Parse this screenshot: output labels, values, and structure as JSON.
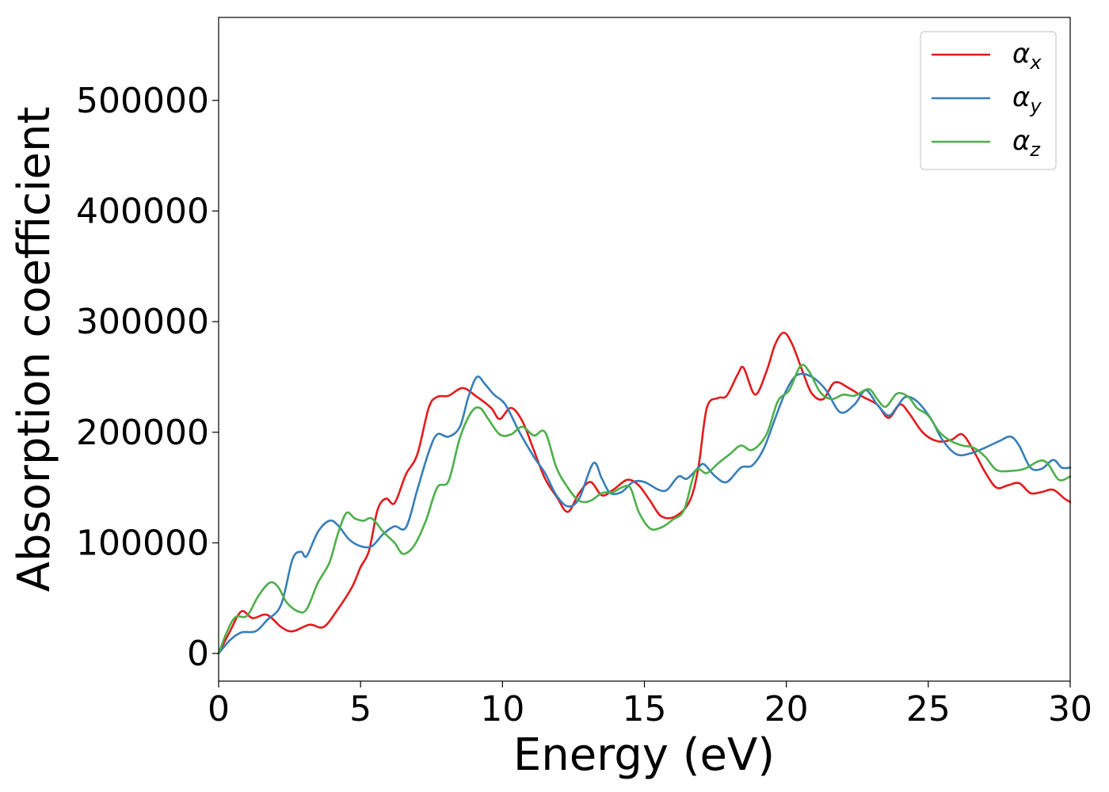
{
  "chart_data": {
    "type": "line",
    "xlabel": "Energy (eV)",
    "ylabel": "Absorption coefficient",
    "xlim": [
      0,
      30
    ],
    "ylim": [
      -25000,
      575000
    ],
    "x_ticks": [
      0,
      5,
      10,
      15,
      20,
      25,
      30
    ],
    "y_ticks": [
      0,
      100000,
      200000,
      300000,
      400000,
      500000
    ],
    "grid": false,
    "legend_position": "top-right",
    "series": [
      {
        "name": "α",
        "sub": "x",
        "color": "#e41a1c",
        "points": [
          [
            0,
            0
          ],
          [
            0.4,
            20000
          ],
          [
            0.8,
            38000
          ],
          [
            1.2,
            32000
          ],
          [
            1.7,
            35000
          ],
          [
            2.2,
            24000
          ],
          [
            2.6,
            20000
          ],
          [
            3.2,
            26000
          ],
          [
            3.7,
            24000
          ],
          [
            4.2,
            40000
          ],
          [
            4.7,
            60000
          ],
          [
            5.0,
            78000
          ],
          [
            5.3,
            93000
          ],
          [
            5.6,
            130000
          ],
          [
            5.9,
            140000
          ],
          [
            6.2,
            136000
          ],
          [
            6.6,
            162000
          ],
          [
            7.0,
            180000
          ],
          [
            7.4,
            222000
          ],
          [
            7.7,
            232000
          ],
          [
            8.1,
            233000
          ],
          [
            8.6,
            240000
          ],
          [
            9.1,
            232000
          ],
          [
            9.6,
            222000
          ],
          [
            9.9,
            212000
          ],
          [
            10.3,
            222000
          ],
          [
            10.7,
            210000
          ],
          [
            11.1,
            184000
          ],
          [
            11.5,
            158000
          ],
          [
            11.9,
            142000
          ],
          [
            12.3,
            128000
          ],
          [
            12.7,
            145000
          ],
          [
            13.1,
            155000
          ],
          [
            13.5,
            143000
          ],
          [
            13.9,
            148000
          ],
          [
            14.4,
            157000
          ],
          [
            14.8,
            152000
          ],
          [
            15.2,
            138000
          ],
          [
            15.6,
            124000
          ],
          [
            16.1,
            124000
          ],
          [
            16.6,
            138000
          ],
          [
            16.9,
            168000
          ],
          [
            17.2,
            222000
          ],
          [
            17.6,
            231000
          ],
          [
            17.9,
            233000
          ],
          [
            18.3,
            253000
          ],
          [
            18.5,
            258000
          ],
          [
            18.9,
            234000
          ],
          [
            19.3,
            255000
          ],
          [
            19.6,
            279000
          ],
          [
            19.9,
            290000
          ],
          [
            20.2,
            280000
          ],
          [
            20.6,
            253000
          ],
          [
            20.9,
            235000
          ],
          [
            21.3,
            230000
          ],
          [
            21.7,
            245000
          ],
          [
            22.2,
            240000
          ],
          [
            22.7,
            232000
          ],
          [
            23.2,
            225000
          ],
          [
            23.6,
            213000
          ],
          [
            24.0,
            225000
          ],
          [
            24.3,
            218000
          ],
          [
            24.8,
            200000
          ],
          [
            25.3,
            192000
          ],
          [
            25.8,
            193000
          ],
          [
            26.2,
            198000
          ],
          [
            26.6,
            183000
          ],
          [
            27.0,
            164000
          ],
          [
            27.4,
            150000
          ],
          [
            27.8,
            152000
          ],
          [
            28.2,
            154000
          ],
          [
            28.6,
            145000
          ],
          [
            29.0,
            146000
          ],
          [
            29.4,
            148000
          ],
          [
            29.8,
            140000
          ],
          [
            30.0,
            137000
          ]
        ]
      },
      {
        "name": "α",
        "sub": "y",
        "color": "#377eb8",
        "points": [
          [
            0,
            0
          ],
          [
            0.4,
            12000
          ],
          [
            0.8,
            19000
          ],
          [
            1.3,
            20000
          ],
          [
            1.7,
            30000
          ],
          [
            2.2,
            44000
          ],
          [
            2.6,
            85000
          ],
          [
            2.9,
            92000
          ],
          [
            3.1,
            88000
          ],
          [
            3.5,
            110000
          ],
          [
            3.9,
            120000
          ],
          [
            4.2,
            116000
          ],
          [
            4.6,
            103000
          ],
          [
            5.0,
            97000
          ],
          [
            5.4,
            97000
          ],
          [
            5.8,
            108000
          ],
          [
            6.2,
            115000
          ],
          [
            6.6,
            114000
          ],
          [
            7.0,
            148000
          ],
          [
            7.4,
            182000
          ],
          [
            7.7,
            198000
          ],
          [
            8.1,
            196000
          ],
          [
            8.5,
            205000
          ],
          [
            8.8,
            232000
          ],
          [
            9.1,
            250000
          ],
          [
            9.4,
            243000
          ],
          [
            9.7,
            234000
          ],
          [
            10.1,
            225000
          ],
          [
            10.6,
            200000
          ],
          [
            11.1,
            178000
          ],
          [
            11.5,
            163000
          ],
          [
            11.9,
            143000
          ],
          [
            12.3,
            133000
          ],
          [
            12.7,
            140000
          ],
          [
            13.2,
            172000
          ],
          [
            13.5,
            158000
          ],
          [
            13.8,
            145000
          ],
          [
            14.2,
            146000
          ],
          [
            14.6,
            155000
          ],
          [
            15.0,
            155000
          ],
          [
            15.5,
            148000
          ],
          [
            15.8,
            148000
          ],
          [
            16.2,
            160000
          ],
          [
            16.5,
            158000
          ],
          [
            16.9,
            168000
          ],
          [
            17.1,
            171000
          ],
          [
            17.5,
            160000
          ],
          [
            17.9,
            155000
          ],
          [
            18.4,
            168000
          ],
          [
            18.8,
            170000
          ],
          [
            19.2,
            185000
          ],
          [
            19.6,
            212000
          ],
          [
            20.0,
            238000
          ],
          [
            20.4,
            252000
          ],
          [
            20.9,
            250000
          ],
          [
            21.4,
            238000
          ],
          [
            21.9,
            218000
          ],
          [
            22.4,
            225000
          ],
          [
            22.8,
            238000
          ],
          [
            23.2,
            225000
          ],
          [
            23.6,
            215000
          ],
          [
            23.9,
            223000
          ],
          [
            24.2,
            232000
          ],
          [
            24.6,
            228000
          ],
          [
            25.1,
            212000
          ],
          [
            25.5,
            193000
          ],
          [
            26.0,
            180000
          ],
          [
            26.5,
            181000
          ],
          [
            27.0,
            186000
          ],
          [
            27.5,
            192000
          ],
          [
            27.9,
            196000
          ],
          [
            28.2,
            188000
          ],
          [
            28.6,
            168000
          ],
          [
            29.0,
            167000
          ],
          [
            29.4,
            175000
          ],
          [
            29.7,
            168000
          ],
          [
            30.0,
            168000
          ]
        ]
      },
      {
        "name": "α",
        "sub": "z",
        "color": "#4daf4a",
        "points": [
          [
            0,
            0
          ],
          [
            0.3,
            20000
          ],
          [
            0.6,
            33000
          ],
          [
            1.0,
            34000
          ],
          [
            1.4,
            52000
          ],
          [
            1.8,
            64000
          ],
          [
            2.1,
            60000
          ],
          [
            2.4,
            46000
          ],
          [
            2.8,
            38000
          ],
          [
            3.1,
            40000
          ],
          [
            3.5,
            64000
          ],
          [
            3.9,
            82000
          ],
          [
            4.2,
            108000
          ],
          [
            4.5,
            127000
          ],
          [
            4.8,
            122000
          ],
          [
            5.1,
            120000
          ],
          [
            5.4,
            122000
          ],
          [
            5.8,
            110000
          ],
          [
            6.2,
            100000
          ],
          [
            6.5,
            90000
          ],
          [
            6.9,
            98000
          ],
          [
            7.3,
            120000
          ],
          [
            7.7,
            150000
          ],
          [
            8.1,
            156000
          ],
          [
            8.5,
            195000
          ],
          [
            8.9,
            218000
          ],
          [
            9.2,
            222000
          ],
          [
            9.5,
            212000
          ],
          [
            9.9,
            198000
          ],
          [
            10.3,
            198000
          ],
          [
            10.7,
            205000
          ],
          [
            11.1,
            197000
          ],
          [
            11.5,
            200000
          ],
          [
            11.9,
            168000
          ],
          [
            12.3,
            150000
          ],
          [
            12.7,
            138000
          ],
          [
            13.1,
            138000
          ],
          [
            13.5,
            145000
          ],
          [
            13.9,
            146000
          ],
          [
            14.2,
            150000
          ],
          [
            14.5,
            150000
          ],
          [
            14.8,
            128000
          ],
          [
            15.2,
            113000
          ],
          [
            15.6,
            114000
          ],
          [
            16.0,
            121000
          ],
          [
            16.4,
            130000
          ],
          [
            16.8,
            165000
          ],
          [
            17.2,
            163000
          ],
          [
            17.6,
            172000
          ],
          [
            18.0,
            180000
          ],
          [
            18.4,
            188000
          ],
          [
            18.8,
            184000
          ],
          [
            19.3,
            198000
          ],
          [
            19.7,
            228000
          ],
          [
            20.1,
            238000
          ],
          [
            20.5,
            260000
          ],
          [
            20.8,
            255000
          ],
          [
            21.2,
            236000
          ],
          [
            21.6,
            230000
          ],
          [
            22.0,
            234000
          ],
          [
            22.4,
            233000
          ],
          [
            22.9,
            239000
          ],
          [
            23.2,
            230000
          ],
          [
            23.5,
            223000
          ],
          [
            23.9,
            235000
          ],
          [
            24.3,
            232000
          ],
          [
            24.6,
            222000
          ],
          [
            25.0,
            215000
          ],
          [
            25.4,
            200000
          ],
          [
            25.8,
            192000
          ],
          [
            26.2,
            188000
          ],
          [
            26.6,
            186000
          ],
          [
            27.0,
            178000
          ],
          [
            27.4,
            166000
          ],
          [
            27.9,
            165000
          ],
          [
            28.4,
            167000
          ],
          [
            28.9,
            174000
          ],
          [
            29.2,
            172000
          ],
          [
            29.6,
            157000
          ],
          [
            30.0,
            160000
          ]
        ]
      }
    ]
  }
}
